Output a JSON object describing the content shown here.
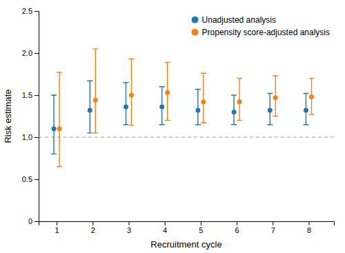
{
  "chart_data": {
    "type": "scatter",
    "x_label": "Recruitment cycle",
    "y_label": "Risk estimate",
    "x": [
      1,
      2,
      3,
      4,
      5,
      6,
      7,
      8
    ],
    "series": [
      {
        "name": "Unadjusted analysis",
        "values": [
          1.1,
          1.32,
          1.36,
          1.36,
          1.32,
          1.3,
          1.32,
          1.32
        ],
        "lower": [
          0.8,
          1.05,
          1.15,
          1.15,
          1.15,
          1.15,
          1.15,
          1.15
        ],
        "upper": [
          1.5,
          1.67,
          1.65,
          1.6,
          1.57,
          1.5,
          1.52,
          1.52
        ]
      },
      {
        "name": "Propensity score-adjusted analysis",
        "values": [
          1.1,
          1.44,
          1.5,
          1.53,
          1.42,
          1.42,
          1.47,
          1.48
        ],
        "lower": [
          0.65,
          1.05,
          1.14,
          1.2,
          1.17,
          1.2,
          1.25,
          1.27
        ],
        "upper": [
          1.77,
          2.05,
          1.93,
          1.89,
          1.76,
          1.7,
          1.73,
          1.7
        ]
      }
    ],
    "ref_line": 1.0,
    "xlim": [
      0.5,
      8.7
    ],
    "xticks": [
      1,
      2,
      3,
      4,
      5,
      6,
      7,
      8
    ],
    "ylim": [
      0,
      2.5
    ],
    "yticks": [
      0,
      0.5,
      {
        "value": 1,
        "label": "1.0"
      },
      1.5,
      {
        "value": 2,
        "label": "2.0"
      },
      2.5
    ],
    "grid": false,
    "legend": "upper right"
  }
}
